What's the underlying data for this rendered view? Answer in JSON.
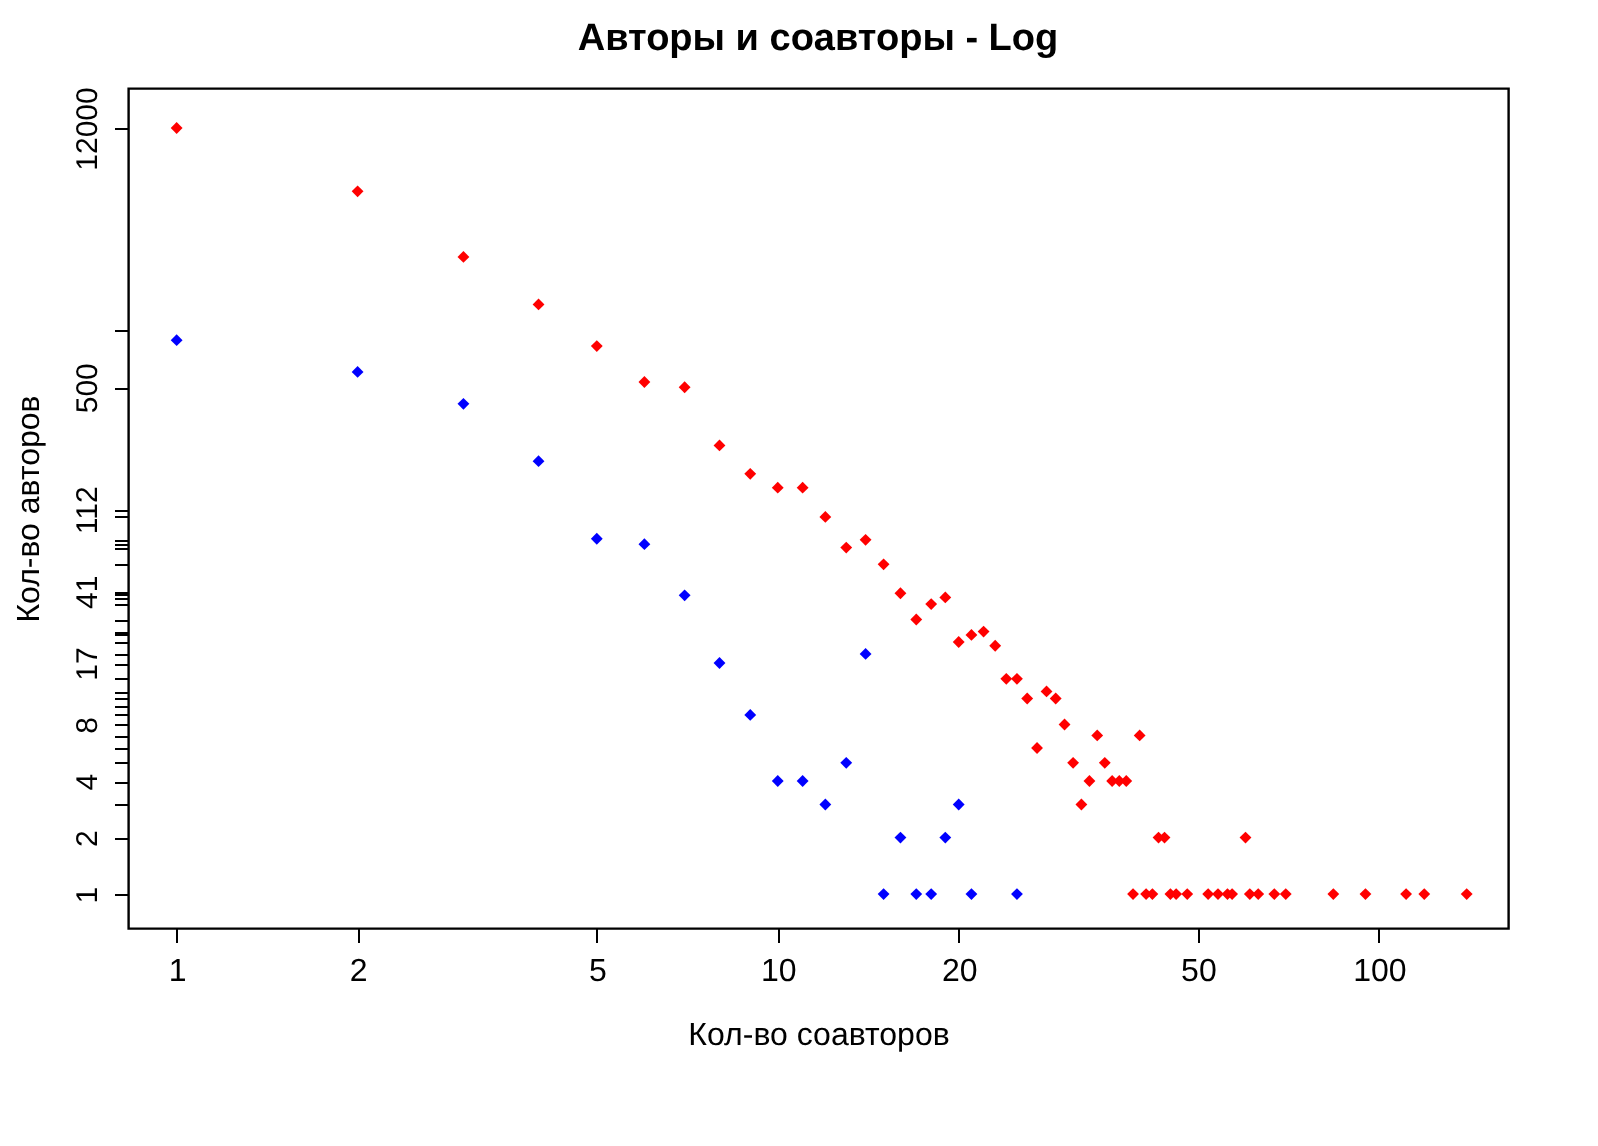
{
  "chart_data": {
    "type": "scatter",
    "title": "Авторы и соавторы - Log",
    "xlabel": "Кол-во соавторов",
    "ylabel": "Кол-во авторов",
    "log": "xy",
    "marker": "diamond",
    "grid": false,
    "xlim": [
      0.83,
      164
    ],
    "ylim": [
      0.66,
      19600
    ],
    "xticks": [
      1,
      2,
      5,
      10,
      20,
      50,
      100
    ],
    "yticks": [
      1,
      2,
      {
        "value": 3,
        "label": null
      },
      4,
      {
        "value": 5,
        "label": null
      },
      {
        "value": 6,
        "label": null
      },
      {
        "value": 7,
        "label": null
      },
      8,
      {
        "value": 9,
        "label": null
      },
      {
        "value": 10,
        "label": null
      },
      {
        "value": 11,
        "label": null
      },
      {
        "value": 12,
        "label": null
      },
      {
        "value": 14,
        "label": null
      },
      17,
      {
        "value": 19,
        "label": null
      },
      {
        "value": 22,
        "label": null
      },
      {
        "value": 24,
        "label": null
      },
      {
        "value": 25,
        "label": null
      },
      {
        "value": 29,
        "label": null
      },
      {
        "value": 35,
        "label": null
      },
      {
        "value": 38,
        "label": null
      },
      {
        "value": 40,
        "label": null
      },
      41,
      {
        "value": 57,
        "label": null
      },
      {
        "value": 70,
        "label": null
      },
      {
        "value": 73,
        "label": null
      },
      {
        "value": 77,
        "label": null
      },
      {
        "value": 102,
        "label": null
      },
      112,
      500,
      {
        "value": 1000,
        "label": null
      },
      12000
    ],
    "series": [
      {
        "color": "#ff0000",
        "x": [
          1,
          2,
          3,
          4,
          5,
          6,
          7,
          8,
          9,
          10,
          11,
          12,
          13,
          14,
          15,
          16,
          17,
          18,
          19,
          20,
          21,
          22,
          23,
          24,
          25,
          26,
          27,
          28,
          29,
          30,
          31,
          32,
          33,
          34,
          35,
          36,
          37,
          38,
          40,
          43,
          44,
          60,
          39,
          41,
          42,
          45,
          46,
          48,
          52,
          54,
          56,
          57,
          61,
          63,
          67,
          70,
          84,
          95,
          111,
          119,
          140
        ],
        "values": [
          12000,
          5520,
          2470,
          1380,
          828,
          533,
          500,
          245,
          173,
          146,
          146,
          102,
          70,
          77,
          57,
          40,
          29,
          35,
          38,
          22,
          24,
          25,
          21,
          14,
          14,
          11,
          6,
          12,
          11,
          8,
          5,
          3,
          4,
          7,
          5,
          4,
          4,
          4,
          7,
          2,
          2,
          2,
          1,
          1,
          1,
          1,
          1,
          1,
          1,
          1,
          1,
          1,
          1,
          1,
          1,
          1,
          1,
          1,
          1,
          1,
          1
        ]
      },
      {
        "color": "#0000ff",
        "x": [
          1,
          2,
          3,
          4,
          5,
          6,
          7,
          8,
          9,
          10,
          11,
          12,
          13,
          14,
          15,
          16,
          17,
          18,
          19,
          20,
          21,
          25
        ],
        "values": [
          890,
          603,
          408,
          202,
          78,
          73,
          39,
          17,
          9,
          4,
          4,
          3,
          5,
          19,
          1,
          2,
          1,
          1,
          2,
          3,
          1,
          1
        ]
      }
    ]
  }
}
